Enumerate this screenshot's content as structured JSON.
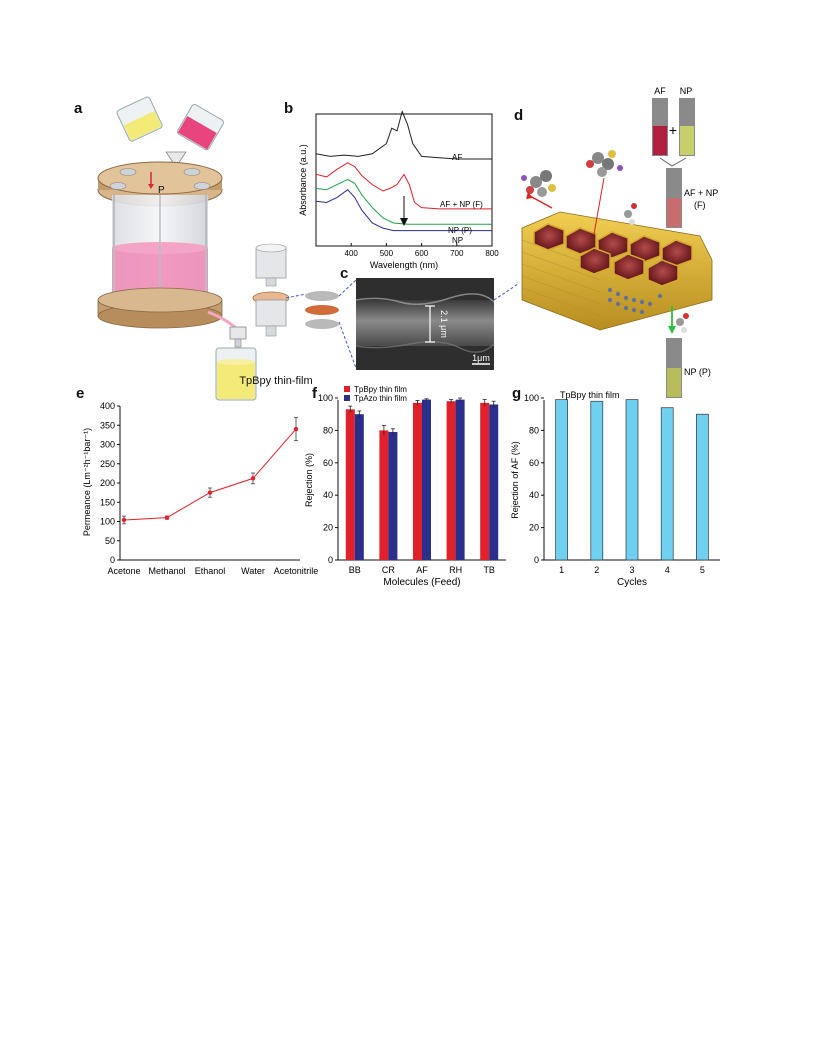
{
  "panels": {
    "a": "a",
    "b": "b",
    "c": "c",
    "d": "d",
    "e": "e",
    "f": "f",
    "g": "g"
  },
  "panel_a": {
    "pressure_label": "P",
    "caption": "TpBpy thin-film"
  },
  "panel_c": {
    "thickness_label": "2.1 μm",
    "scale_bar": "1μm"
  },
  "panel_d": {
    "vial_af": "AF",
    "vial_np": "NP",
    "plus": "+",
    "mixture_label_1": "AF + NP",
    "mixture_label_2": "(F)",
    "permeate_label": "NP (P)"
  },
  "colors": {
    "pink": "#e86b9e",
    "yellow": "#f4ea78",
    "wood": "#c9a47a",
    "red_series": "#e0202a",
    "blue_series": "#2a2f8c",
    "cyan_bars": "#6fd0f0",
    "green_line": "#22a050"
  },
  "chart_data": [
    {
      "id": "b",
      "type": "line",
      "xlabel": "Wavelength (nm)",
      "ylabel": "Absorbance (a.u.)",
      "xlim": [
        300,
        800
      ],
      "xticks": [
        "400",
        "500",
        "600",
        "700",
        "800"
      ],
      "arrow": "down at ~550 nm",
      "series": [
        {
          "name": "AF",
          "color": "#222222",
          "x": [
            300,
            340,
            380,
            420,
            460,
            500,
            515,
            530,
            545,
            560,
            575,
            600,
            650,
            700,
            750,
            800
          ],
          "y": [
            0.72,
            0.7,
            0.71,
            0.7,
            0.72,
            0.8,
            0.92,
            0.9,
            1.05,
            0.95,
            0.8,
            0.7,
            0.69,
            0.68,
            0.68,
            0.68
          ]
        },
        {
          "name": "AF + NP (F)",
          "color": "#e0202a",
          "x": [
            300,
            330,
            360,
            390,
            410,
            430,
            460,
            490,
            510,
            530,
            550,
            565,
            580,
            600,
            650,
            700,
            800
          ],
          "y": [
            0.56,
            0.54,
            0.6,
            0.65,
            0.62,
            0.55,
            0.48,
            0.43,
            0.45,
            0.48,
            0.56,
            0.48,
            0.34,
            0.3,
            0.29,
            0.29,
            0.29
          ]
        },
        {
          "name": "NP (P)",
          "color": "#22a050",
          "x": [
            300,
            330,
            360,
            390,
            410,
            430,
            460,
            490,
            520,
            560,
            600,
            700,
            800
          ],
          "y": [
            0.45,
            0.44,
            0.48,
            0.52,
            0.49,
            0.4,
            0.3,
            0.22,
            0.18,
            0.17,
            0.17,
            0.17,
            0.17
          ]
        },
        {
          "name": "NP",
          "color": "#2a2f8c",
          "x": [
            300,
            330,
            360,
            390,
            410,
            430,
            460,
            490,
            520,
            560,
            600,
            700,
            800
          ],
          "y": [
            0.35,
            0.34,
            0.38,
            0.44,
            0.38,
            0.28,
            0.18,
            0.14,
            0.12,
            0.12,
            0.12,
            0.12,
            0.12
          ]
        }
      ]
    },
    {
      "id": "e",
      "type": "line",
      "xlabel": "",
      "ylabel": "Permeance (Lm⁻²h⁻¹bar⁻¹)",
      "ylim": [
        0,
        400
      ],
      "yticks": [
        "0",
        "50",
        "100",
        "150",
        "200",
        "250",
        "300",
        "350",
        "400"
      ],
      "categories": [
        "Acetone",
        "Methanol",
        "Ethanol",
        "Water",
        "Acetonitrile"
      ],
      "values": [
        104,
        110,
        175,
        212,
        340
      ],
      "errors": [
        10,
        4,
        12,
        14,
        30
      ],
      "color": "#e0202a"
    },
    {
      "id": "f",
      "type": "bar",
      "xlabel": "Molecules (Feed)",
      "ylabel": "Rejection (%)",
      "ylim": [
        0,
        100
      ],
      "yticks": [
        "0",
        "20",
        "40",
        "60",
        "80",
        "100"
      ],
      "categories": [
        "BB",
        "CR",
        "AF",
        "RH",
        "TB"
      ],
      "legend": "top-left",
      "series": [
        {
          "name": "TpBpy thin film",
          "color": "#e0202a",
          "values": [
            93,
            80,
            97,
            98,
            97
          ],
          "errors": [
            2,
            3,
            1.5,
            1,
            2
          ]
        },
        {
          "name": "TpAzo thin film",
          "color": "#2a2f8c",
          "values": [
            90,
            79,
            99,
            99,
            96
          ],
          "errors": [
            2,
            2,
            0.5,
            1,
            2
          ]
        }
      ]
    },
    {
      "id": "g",
      "type": "bar",
      "title": "TpBpy thin film",
      "xlabel": "Cycles",
      "ylabel": "Rejection of AF (%)",
      "ylim": [
        0,
        100
      ],
      "yticks": [
        "0",
        "20",
        "40",
        "60",
        "80",
        "100"
      ],
      "categories": [
        "1",
        "2",
        "3",
        "4",
        "5"
      ],
      "values": [
        99,
        98,
        99,
        94,
        90
      ],
      "color": "#6fd0f0"
    }
  ]
}
